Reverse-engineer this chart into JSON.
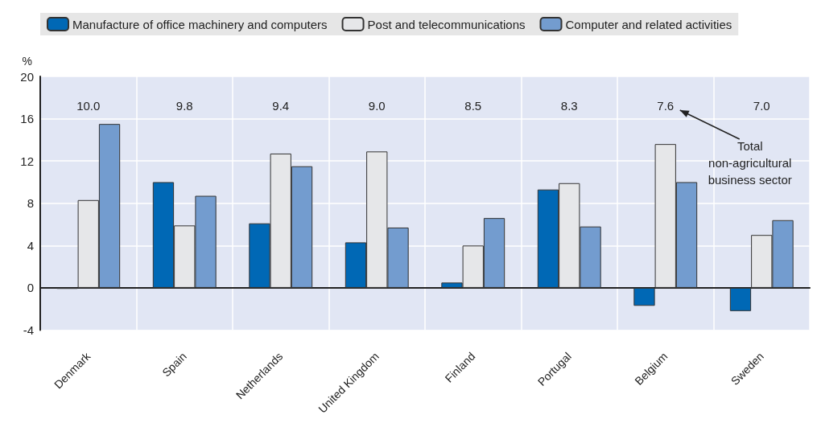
{
  "chart_data": {
    "type": "bar",
    "ylabel": "%",
    "categories": [
      "Denmark",
      "Spain",
      "Netherlands",
      "United Kingdom",
      "Finland",
      "Portugal",
      "Belgium",
      "Sweden"
    ],
    "series": [
      {
        "name": "Manufacture of office machinery and computers",
        "color": "#0068b5",
        "values": [
          -0.1,
          10.0,
          6.1,
          4.3,
          0.5,
          9.3,
          -1.7,
          -2.2
        ]
      },
      {
        "name": "Post and telecommunications",
        "color": "#e6e7e9",
        "values": [
          8.3,
          5.9,
          12.7,
          12.9,
          4.0,
          9.9,
          13.6,
          5.0
        ]
      },
      {
        "name": "Computer and related activities",
        "color": "#739ccf",
        "values": [
          15.5,
          8.7,
          11.5,
          5.7,
          6.6,
          5.8,
          10.0,
          6.4
        ]
      }
    ],
    "annotations": [
      "10.0",
      "9.8",
      "9.4",
      "9.0",
      "8.5",
      "8.3",
      "7.6",
      "7.0",
      "Total\nnon-agricultural\nbusiness sector"
    ],
    "ylim": [
      -4,
      20
    ],
    "yticks": [
      -4,
      0,
      4,
      8,
      12,
      16,
      20
    ],
    "grid": true,
    "legend": "top"
  }
}
